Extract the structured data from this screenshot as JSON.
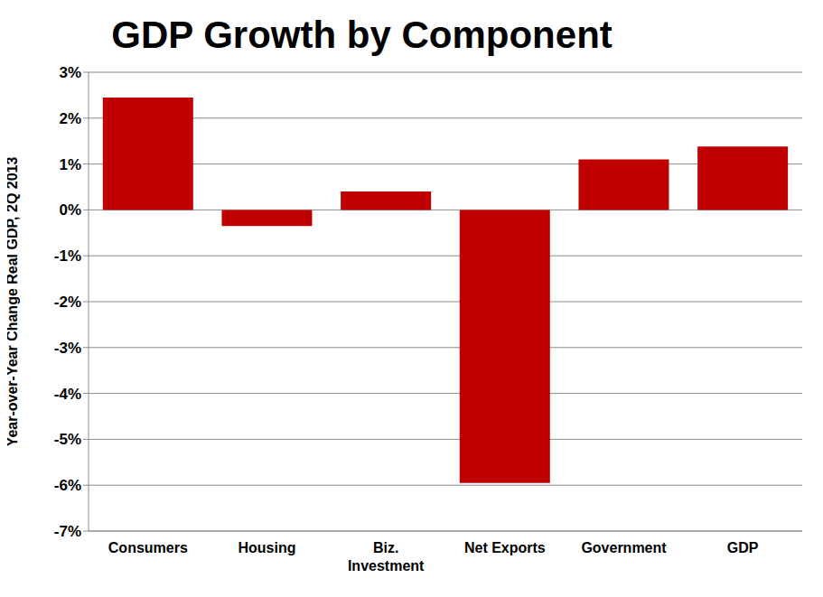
{
  "chart_data": {
    "type": "bar",
    "title": "GDP Growth by Component",
    "y_label": "Year-over-Year Change Real GDP, 2Q 2013",
    "categories": [
      "Consumers",
      "Housing",
      "Biz. Investment",
      "Net Exports",
      "Government",
      "GDP"
    ],
    "values": [
      2.45,
      -0.35,
      0.4,
      -5.95,
      1.1,
      1.38
    ],
    "color": "#c00000",
    "ylim": [
      -7,
      3
    ],
    "yticks": [
      {
        "value": -7,
        "label": "-7%"
      },
      {
        "value": -6,
        "label": "-6%"
      },
      {
        "value": -5,
        "label": "-5%"
      },
      {
        "value": -4,
        "label": "-4%"
      },
      {
        "value": -3,
        "label": "-3%"
      },
      {
        "value": -2,
        "label": "-2%"
      },
      {
        "value": -1,
        "label": "-1%"
      },
      {
        "value": 0,
        "label": "0%"
      },
      {
        "value": 1,
        "label": "1%"
      },
      {
        "value": 2,
        "label": "2%"
      },
      {
        "value": 3,
        "label": "3%"
      }
    ],
    "grid": true
  }
}
